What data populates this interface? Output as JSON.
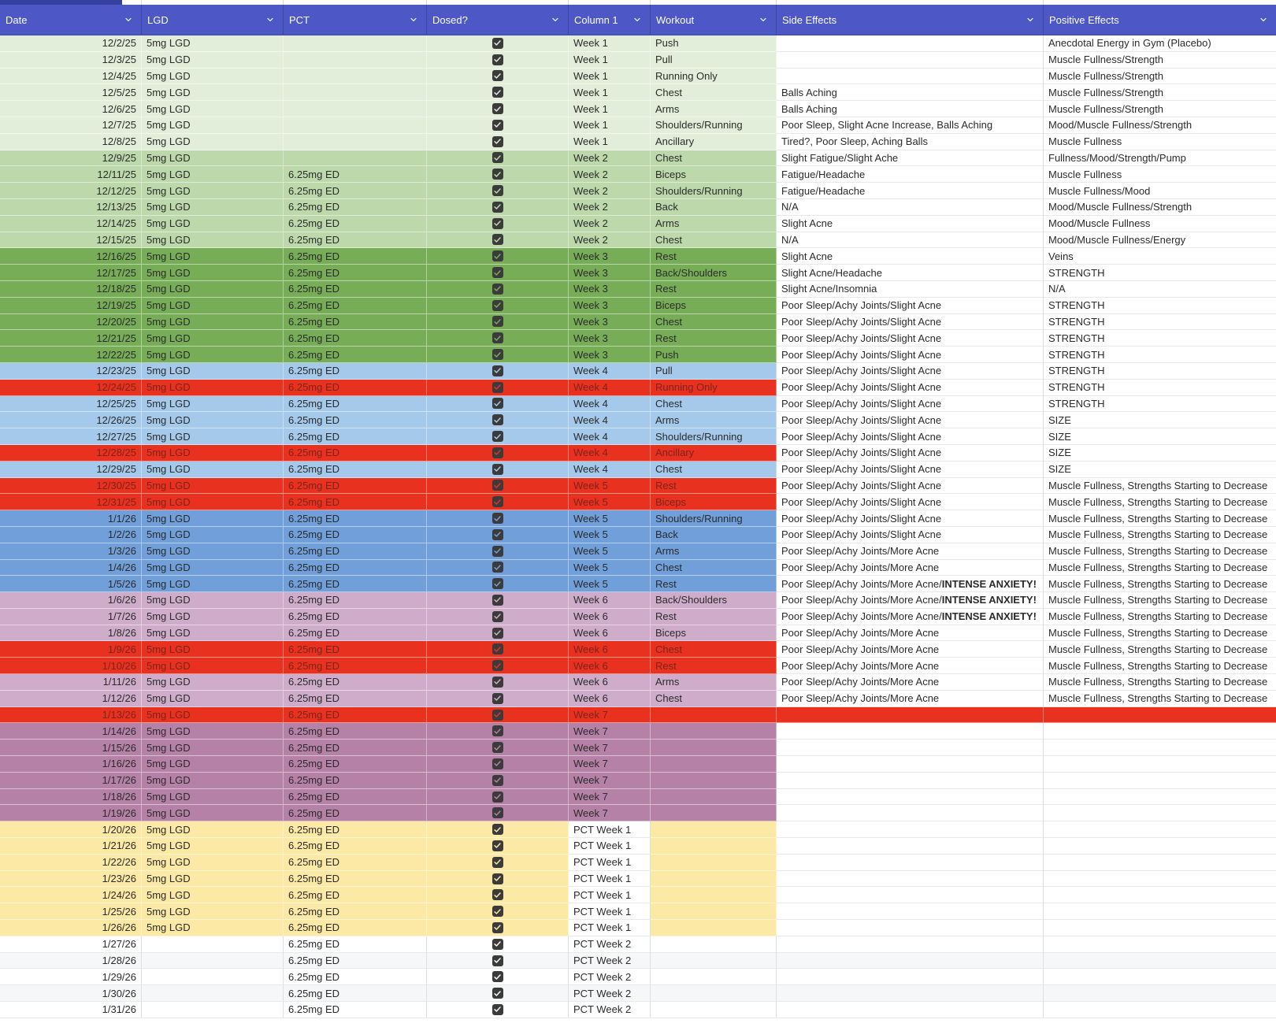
{
  "header": {
    "columns": [
      {
        "key": "date",
        "label": "Date"
      },
      {
        "key": "lgd",
        "label": "LGD"
      },
      {
        "key": "pct",
        "label": "PCT"
      },
      {
        "key": "dosed",
        "label": "Dosed?"
      },
      {
        "key": "column1",
        "label": "Column 1"
      },
      {
        "key": "workout",
        "label": "Workout"
      },
      {
        "key": "side_effects",
        "label": "Side Effects"
      },
      {
        "key": "positive_effects",
        "label": "Positive Effects"
      }
    ]
  },
  "icons": {
    "filter_chevron": "chevron-down"
  },
  "colors": {
    "header_bg": "#4d57c6",
    "header_dark_bar": "#36409f",
    "header_text": "#ffffff",
    "g1": "#e2eeda",
    "g2": "#bdd9ac",
    "g3": "#78ad58",
    "b1": "#a4c9ea",
    "b2": "#709fd9",
    "pk": "#cfadca",
    "mv": "#b681a7",
    "yl": "#fbe9a5",
    "rd": "#e93120",
    "rdf": "#e93120",
    "wh": "#ffffff",
    "wh2": "#f6f7f9",
    "red_row_text": "#7c241c",
    "cell_text": "#2b2b2b",
    "checkbox": "#3b3b3b"
  },
  "rows": [
    {
      "date": "12/2/25",
      "lgd": "5mg LGD",
      "pct": "",
      "dosed": true,
      "col1": "Week 1",
      "workout": "Push",
      "se": "",
      "seb": "",
      "pe": "Anecdotal Energy in Gym (Placebo)",
      "band": "g1"
    },
    {
      "date": "12/3/25",
      "lgd": "5mg LGD",
      "pct": "",
      "dosed": true,
      "col1": "Week 1",
      "workout": "Pull",
      "se": "",
      "seb": "",
      "pe": "Muscle Fullness/Strength",
      "band": "g1"
    },
    {
      "date": "12/4/25",
      "lgd": "5mg LGD",
      "pct": "",
      "dosed": true,
      "col1": "Week 1",
      "workout": "Running Only",
      "se": "",
      "seb": "",
      "pe": "Muscle Fullness/Strength",
      "band": "g1"
    },
    {
      "date": "12/5/25",
      "lgd": "5mg LGD",
      "pct": "",
      "dosed": true,
      "col1": "Week 1",
      "workout": "Chest",
      "se": "Balls Aching",
      "seb": "",
      "pe": "Muscle Fullness/Strength",
      "band": "g1"
    },
    {
      "date": "12/6/25",
      "lgd": "5mg LGD",
      "pct": "",
      "dosed": true,
      "col1": "Week 1",
      "workout": "Arms",
      "se": "Balls Aching",
      "seb": "",
      "pe": "Muscle Fullness/Strength",
      "band": "g1"
    },
    {
      "date": "12/7/25",
      "lgd": "5mg LGD",
      "pct": "",
      "dosed": true,
      "col1": "Week 1",
      "workout": "Shoulders/Running",
      "se": "Poor Sleep, Slight Acne Increase, Balls Aching",
      "seb": "",
      "pe": "Mood/Muscle Fullness/Strength",
      "band": "g1"
    },
    {
      "date": "12/8/25",
      "lgd": "5mg LGD",
      "pct": "",
      "dosed": true,
      "col1": "Week 1",
      "workout": "Ancillary",
      "se": "Tired?, Poor Sleep, Aching Balls",
      "seb": "",
      "pe": "Muscle Fullness",
      "band": "g1"
    },
    {
      "date": "12/9/25",
      "lgd": "5mg LGD",
      "pct": "",
      "dosed": true,
      "col1": "Week 2",
      "workout": "Chest",
      "se": "Slight Fatigue/Slight Ache",
      "seb": "",
      "pe": "Fullness/Mood/Strength/Pump",
      "band": "g2"
    },
    {
      "date": "12/11/25",
      "lgd": "5mg LGD",
      "pct": "6.25mg ED",
      "dosed": true,
      "col1": "Week 2",
      "workout": "Biceps",
      "se": "Fatigue/Headache",
      "seb": "",
      "pe": "Muscle Fullness",
      "band": "g2"
    },
    {
      "date": "12/12/25",
      "lgd": "5mg LGD",
      "pct": "6.25mg ED",
      "dosed": true,
      "col1": "Week 2",
      "workout": "Shoulders/Running",
      "se": "Fatigue/Headache",
      "seb": "",
      "pe": "Muscle Fullness/Mood",
      "band": "g2"
    },
    {
      "date": "12/13/25",
      "lgd": "5mg LGD",
      "pct": "6.25mg ED",
      "dosed": true,
      "col1": "Week 2",
      "workout": "Back",
      "se": "N/A",
      "seb": "",
      "pe": "Mood/Muscle Fullness/Strength",
      "band": "g2"
    },
    {
      "date": "12/14/25",
      "lgd": "5mg LGD",
      "pct": "6.25mg ED",
      "dosed": true,
      "col1": "Week 2",
      "workout": "Arms",
      "se": "Slight Acne",
      "seb": "",
      "pe": "Mood/Muscle Fullness",
      "band": "g2"
    },
    {
      "date": "12/15/25",
      "lgd": "5mg LGD",
      "pct": "6.25mg ED",
      "dosed": true,
      "col1": "Week 2",
      "workout": "Chest",
      "se": "N/A",
      "seb": "",
      "pe": "Mood/Muscle Fullness/Energy",
      "band": "g2"
    },
    {
      "date": "12/16/25",
      "lgd": "5mg LGD",
      "pct": "6.25mg ED",
      "dosed": true,
      "col1": "Week 3",
      "workout": "Rest",
      "se": "Slight Acne",
      "seb": "",
      "pe": "Veins",
      "band": "g3"
    },
    {
      "date": "12/17/25",
      "lgd": "5mg LGD",
      "pct": "6.25mg ED",
      "dosed": true,
      "col1": "Week 3",
      "workout": "Back/Shoulders",
      "se": "Slight Acne/Headache",
      "seb": "",
      "pe": "STRENGTH",
      "band": "g3"
    },
    {
      "date": "12/18/25",
      "lgd": "5mg LGD",
      "pct": "6.25mg ED",
      "dosed": true,
      "col1": "Week 3",
      "workout": "Rest",
      "se": "Slight Acne/Insomnia",
      "seb": "",
      "pe": "N/A",
      "band": "g3"
    },
    {
      "date": "12/19/25",
      "lgd": "5mg LGD",
      "pct": "6.25mg ED",
      "dosed": true,
      "col1": "Week 3",
      "workout": "Biceps",
      "se": "Poor Sleep/Achy Joints/Slight Acne",
      "seb": "",
      "pe": "STRENGTH",
      "band": "g3"
    },
    {
      "date": "12/20/25",
      "lgd": "5mg LGD",
      "pct": "6.25mg ED",
      "dosed": true,
      "col1": "Week 3",
      "workout": "Chest",
      "se": "Poor Sleep/Achy Joints/Slight Acne",
      "seb": "",
      "pe": "STRENGTH",
      "band": "g3"
    },
    {
      "date": "12/21/25",
      "lgd": "5mg LGD",
      "pct": "6.25mg ED",
      "dosed": true,
      "col1": "Week 3",
      "workout": "Rest",
      "se": "Poor Sleep/Achy Joints/Slight Acne",
      "seb": "",
      "pe": "STRENGTH",
      "band": "g3"
    },
    {
      "date": "12/22/25",
      "lgd": "5mg LGD",
      "pct": "6.25mg ED",
      "dosed": true,
      "col1": "Week 3",
      "workout": "Push",
      "se": "Poor Sleep/Achy Joints/Slight Acne",
      "seb": "",
      "pe": "STRENGTH",
      "band": "g3"
    },
    {
      "date": "12/23/25",
      "lgd": "5mg LGD",
      "pct": "6.25mg ED",
      "dosed": true,
      "col1": "Week 4",
      "workout": "Pull",
      "se": "Poor Sleep/Achy Joints/Slight Acne",
      "seb": "",
      "pe": "STRENGTH",
      "band": "b1"
    },
    {
      "date": "12/24/25",
      "lgd": "5mg LGD",
      "pct": "6.25mg ED",
      "dosed": true,
      "col1": "Week 4",
      "workout": "Running Only",
      "se": "Poor Sleep/Achy Joints/Slight Acne",
      "seb": "",
      "pe": "STRENGTH",
      "band": "rd"
    },
    {
      "date": "12/25/25",
      "lgd": "5mg LGD",
      "pct": "6.25mg ED",
      "dosed": true,
      "col1": "Week 4",
      "workout": "Chest",
      "se": "Poor Sleep/Achy Joints/Slight Acne",
      "seb": "",
      "pe": "STRENGTH",
      "band": "b1"
    },
    {
      "date": "12/26/25",
      "lgd": "5mg LGD",
      "pct": "6.25mg ED",
      "dosed": true,
      "col1": "Week 4",
      "workout": "Arms",
      "se": "Poor Sleep/Achy Joints/Slight Acne",
      "seb": "",
      "pe": "SIZE",
      "band": "b1"
    },
    {
      "date": "12/27/25",
      "lgd": "5mg LGD",
      "pct": "6.25mg ED",
      "dosed": true,
      "col1": "Week 4",
      "workout": "Shoulders/Running",
      "se": "Poor Sleep/Achy Joints/Slight Acne",
      "seb": "",
      "pe": "SIZE",
      "band": "b1"
    },
    {
      "date": "12/28/25",
      "lgd": "5mg LGD",
      "pct": "6.25mg ED",
      "dosed": true,
      "col1": "Week 4",
      "workout": "Ancillary",
      "se": "Poor Sleep/Achy Joints/Slight Acne",
      "seb": "",
      "pe": "SIZE",
      "band": "rd"
    },
    {
      "date": "12/29/25",
      "lgd": "5mg LGD",
      "pct": "6.25mg ED",
      "dosed": true,
      "col1": "Week 4",
      "workout": "Chest",
      "se": "Poor Sleep/Achy Joints/Slight Acne",
      "seb": "",
      "pe": "SIZE",
      "band": "b1"
    },
    {
      "date": "12/30/25",
      "lgd": "5mg LGD",
      "pct": "6.25mg ED",
      "dosed": true,
      "col1": "Week 5",
      "workout": "Rest",
      "se": "Poor Sleep/Achy Joints/Slight Acne",
      "seb": "",
      "pe": "Muscle Fullness, Strengths Starting to Decrease",
      "band": "rd"
    },
    {
      "date": "12/31/25",
      "lgd": "5mg LGD",
      "pct": "6.25mg ED",
      "dosed": true,
      "col1": "Week 5",
      "workout": "Biceps",
      "se": "Poor Sleep/Achy Joints/Slight Acne",
      "seb": "",
      "pe": "Muscle Fullness, Strengths Starting to Decrease",
      "band": "rd"
    },
    {
      "date": "1/1/26",
      "lgd": "5mg LGD",
      "pct": "6.25mg ED",
      "dosed": true,
      "col1": "Week 5",
      "workout": "Shoulders/Running",
      "se": "Poor Sleep/Achy Joints/Slight Acne",
      "seb": "",
      "pe": "Muscle Fullness, Strengths Starting to Decrease",
      "band": "b2"
    },
    {
      "date": "1/2/26",
      "lgd": "5mg LGD",
      "pct": "6.25mg ED",
      "dosed": true,
      "col1": "Week 5",
      "workout": "Back",
      "se": "Poor Sleep/Achy Joints/Slight Acne",
      "seb": "",
      "pe": "Muscle Fullness, Strengths Starting to Decrease",
      "band": "b2"
    },
    {
      "date": "1/3/26",
      "lgd": "5mg LGD",
      "pct": "6.25mg ED",
      "dosed": true,
      "col1": "Week 5",
      "workout": "Arms",
      "se": "Poor Sleep/Achy Joints/More Acne",
      "seb": "",
      "pe": "Muscle Fullness, Strengths Starting to Decrease",
      "band": "b2"
    },
    {
      "date": "1/4/26",
      "lgd": "5mg LGD",
      "pct": "6.25mg ED",
      "dosed": true,
      "col1": "Week 5",
      "workout": "Chest",
      "se": "Poor Sleep/Achy Joints/More Acne",
      "seb": "",
      "pe": "Muscle Fullness, Strengths Starting to Decrease",
      "band": "b2"
    },
    {
      "date": "1/5/26",
      "lgd": "5mg LGD",
      "pct": "6.25mg ED",
      "dosed": true,
      "col1": "Week 5",
      "workout": "Rest",
      "se": "Poor Sleep/Achy Joints/More Acne/",
      "seb": "INTENSE ANXIETY!",
      "pe": "Muscle Fullness, Strengths Starting to Decrease",
      "band": "b2"
    },
    {
      "date": "1/6/26",
      "lgd": "5mg LGD",
      "pct": "6.25mg ED",
      "dosed": true,
      "col1": "Week 6",
      "workout": "Back/Shoulders",
      "se": "Poor Sleep/Achy Joints/More Acne/",
      "seb": "INTENSE ANXIETY!",
      "pe": "Muscle Fullness, Strengths Starting to Decrease",
      "band": "pk"
    },
    {
      "date": "1/7/26",
      "lgd": "5mg LGD",
      "pct": "6.25mg ED",
      "dosed": true,
      "col1": "Week 6",
      "workout": "Rest",
      "se": "Poor Sleep/Achy Joints/More Acne/",
      "seb": "INTENSE ANXIETY!",
      "pe": "Muscle Fullness, Strengths Starting to Decrease",
      "band": "pk"
    },
    {
      "date": "1/8/26",
      "lgd": "5mg LGD",
      "pct": "6.25mg ED",
      "dosed": true,
      "col1": "Week 6",
      "workout": "Biceps",
      "se": "Poor Sleep/Achy Joints/More Acne",
      "seb": "",
      "pe": "Muscle Fullness, Strengths Starting to Decrease",
      "band": "pk"
    },
    {
      "date": "1/9/26",
      "lgd": "5mg LGD",
      "pct": "6.25mg ED",
      "dosed": true,
      "col1": "Week 6",
      "workout": "Chest",
      "se": "Poor Sleep/Achy Joints/More Acne",
      "seb": "",
      "pe": "Muscle Fullness, Strengths Starting to Decrease",
      "band": "rd"
    },
    {
      "date": "1/10/26",
      "lgd": "5mg LGD",
      "pct": "6.25mg ED",
      "dosed": true,
      "col1": "Week 6",
      "workout": "Rest",
      "se": "Poor Sleep/Achy Joints/More Acne",
      "seb": "",
      "pe": "Muscle Fullness, Strengths Starting to Decrease",
      "band": "rd"
    },
    {
      "date": "1/11/26",
      "lgd": "5mg LGD",
      "pct": "6.25mg ED",
      "dosed": true,
      "col1": "Week 6",
      "workout": "Arms",
      "se": "Poor Sleep/Achy Joints/More Acne",
      "seb": "",
      "pe": "Muscle Fullness, Strengths Starting to Decrease",
      "band": "pk"
    },
    {
      "date": "1/12/26",
      "lgd": "5mg LGD",
      "pct": "6.25mg ED",
      "dosed": true,
      "col1": "Week 6",
      "workout": "Chest",
      "se": "Poor Sleep/Achy Joints/More Acne",
      "seb": "",
      "pe": "Muscle Fullness, Strengths Starting to Decrease",
      "band": "pk"
    },
    {
      "date": "1/13/26",
      "lgd": "5mg LGD",
      "pct": "6.25mg ED",
      "dosed": true,
      "col1": "Week 7",
      "workout": "",
      "se": "",
      "seb": "",
      "pe": "",
      "band": "rdf"
    },
    {
      "date": "1/14/26",
      "lgd": "5mg LGD",
      "pct": "6.25mg ED",
      "dosed": true,
      "col1": "Week 7",
      "workout": "",
      "se": "",
      "seb": "",
      "pe": "",
      "band": "mv"
    },
    {
      "date": "1/15/26",
      "lgd": "5mg LGD",
      "pct": "6.25mg ED",
      "dosed": true,
      "col1": "Week 7",
      "workout": "",
      "se": "",
      "seb": "",
      "pe": "",
      "band": "mv"
    },
    {
      "date": "1/16/26",
      "lgd": "5mg LGD",
      "pct": "6.25mg ED",
      "dosed": true,
      "col1": "Week 7",
      "workout": "",
      "se": "",
      "seb": "",
      "pe": "",
      "band": "mv"
    },
    {
      "date": "1/17/26",
      "lgd": "5mg LGD",
      "pct": "6.25mg ED",
      "dosed": true,
      "col1": "Week 7",
      "workout": "",
      "se": "",
      "seb": "",
      "pe": "",
      "band": "mv"
    },
    {
      "date": "1/18/26",
      "lgd": "5mg LGD",
      "pct": "6.25mg ED",
      "dosed": true,
      "col1": "Week 7",
      "workout": "",
      "se": "",
      "seb": "",
      "pe": "",
      "band": "mv"
    },
    {
      "date": "1/19/26",
      "lgd": "5mg LGD",
      "pct": "6.25mg ED",
      "dosed": true,
      "col1": "Week 7",
      "workout": "",
      "se": "",
      "seb": "",
      "pe": "",
      "band": "mv"
    },
    {
      "date": "1/20/26",
      "lgd": "5mg LGD",
      "pct": "6.25mg ED",
      "dosed": true,
      "col1": "PCT Week 1",
      "col1_plain": true,
      "workout": "",
      "se": "",
      "seb": "",
      "pe": "",
      "band": "yl"
    },
    {
      "date": "1/21/26",
      "lgd": "5mg LGD",
      "pct": "6.25mg ED",
      "dosed": true,
      "col1": "PCT Week 1",
      "col1_plain": true,
      "workout": "",
      "se": "",
      "seb": "",
      "pe": "",
      "band": "yl"
    },
    {
      "date": "1/22/26",
      "lgd": "5mg LGD",
      "pct": "6.25mg ED",
      "dosed": true,
      "col1": "PCT Week 1",
      "col1_plain": true,
      "workout": "",
      "se": "",
      "seb": "",
      "pe": "",
      "band": "yl"
    },
    {
      "date": "1/23/26",
      "lgd": "5mg LGD",
      "pct": "6.25mg ED",
      "dosed": true,
      "col1": "PCT Week 1",
      "col1_plain": true,
      "workout": "",
      "se": "",
      "seb": "",
      "pe": "",
      "band": "yl"
    },
    {
      "date": "1/24/26",
      "lgd": "5mg LGD",
      "pct": "6.25mg ED",
      "dosed": true,
      "col1": "PCT Week 1",
      "col1_plain": true,
      "workout": "",
      "se": "",
      "seb": "",
      "pe": "",
      "band": "yl"
    },
    {
      "date": "1/25/26",
      "lgd": "5mg LGD",
      "pct": "6.25mg ED",
      "dosed": true,
      "col1": "PCT Week 1",
      "col1_plain": true,
      "workout": "",
      "se": "",
      "seb": "",
      "pe": "",
      "band": "yl"
    },
    {
      "date": "1/26/26",
      "lgd": "5mg LGD",
      "pct": "6.25mg ED",
      "dosed": true,
      "col1": "PCT Week 1",
      "col1_plain": true,
      "workout": "",
      "se": "",
      "seb": "",
      "pe": "",
      "band": "yl"
    },
    {
      "date": "1/27/26",
      "lgd": "",
      "pct": "6.25mg ED",
      "dosed": true,
      "col1": "PCT Week 2",
      "workout": "",
      "se": "",
      "seb": "",
      "pe": "",
      "band": "wh"
    },
    {
      "date": "1/28/26",
      "lgd": "",
      "pct": "6.25mg ED",
      "dosed": true,
      "col1": "PCT Week 2",
      "workout": "",
      "se": "",
      "seb": "",
      "pe": "",
      "band": "wh2"
    },
    {
      "date": "1/29/26",
      "lgd": "",
      "pct": "6.25mg ED",
      "dosed": true,
      "col1": "PCT Week 2",
      "workout": "",
      "se": "",
      "seb": "",
      "pe": "",
      "band": "wh"
    },
    {
      "date": "1/30/26",
      "lgd": "",
      "pct": "6.25mg ED",
      "dosed": true,
      "col1": "PCT Week 2",
      "workout": "",
      "se": "",
      "seb": "",
      "pe": "",
      "band": "wh2"
    },
    {
      "date": "1/31/26",
      "lgd": "",
      "pct": "6.25mg ED",
      "dosed": true,
      "col1": "PCT Week 2",
      "workout": "",
      "se": "",
      "seb": "",
      "pe": "",
      "band": "wh"
    }
  ]
}
